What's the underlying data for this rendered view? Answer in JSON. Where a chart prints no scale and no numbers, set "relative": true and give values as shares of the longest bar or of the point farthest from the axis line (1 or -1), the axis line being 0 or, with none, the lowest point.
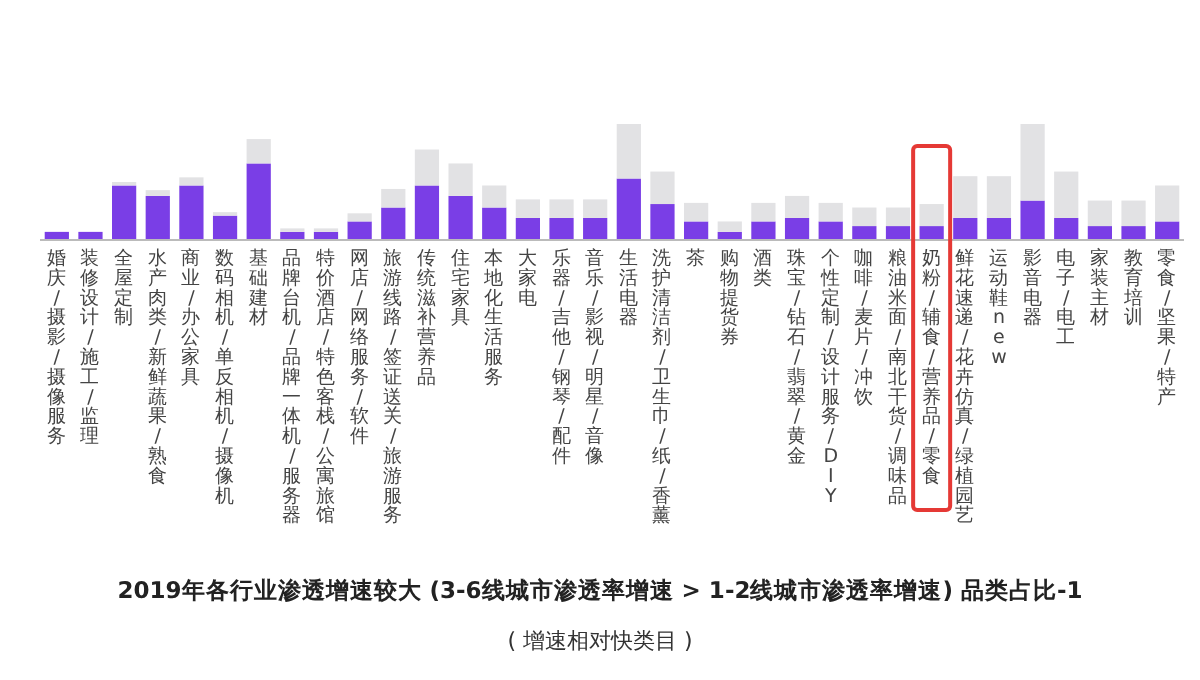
{
  "chart_data": {
    "type": "bar",
    "stacked": true,
    "relative": true,
    "title": "2019年各行业渗透增速较大 (3-6线城市渗透率增速 > 1-2线城市渗透率增速) 品类占比-1",
    "subtitle": "( 增速相对快类目 )",
    "categories": [
      "婚庆/摄影/摄像服务",
      "装修设计/施工/监理",
      "全屋定制",
      "水产肉类/新鲜蔬果/熟食",
      "商业/办公家具",
      "数码相机/单反相机/摄像机",
      "基础建材",
      "品牌台机/品牌一体机/服务器",
      "特价酒店/特色客栈/公寓旅馆",
      "网店/网络服务/软件",
      "旅游线路/签证送关/旅游服务",
      "传统滋补营养品",
      "住宅家具",
      "本地化生活服务",
      "大家电",
      "乐器/吉他/钢琴/配件",
      "音乐/影视/明星/音像",
      "生活电器",
      "洗护清洁剂/卫生巾/纸/香薰",
      "茶",
      "购物提货券",
      "酒类",
      "珠宝/钻石/翡翠/黄金",
      "个性定制/设计服务/DIY",
      "咖啡/麦片/冲饮",
      "粮油米面/南北干货/调味品",
      "奶粉/辅食/营养品/零食",
      "鲜花速递/花卉仿真/绿植园艺",
      "运动鞋new",
      "影音电器",
      "电子/电工",
      "家装主材",
      "教育培训",
      "零食/坚果/特产"
    ],
    "series": [
      {
        "color": "#7a3ee6",
        "values": [
          0.07,
          0.07,
          0.47,
          0.38,
          0.47,
          0.21,
          0.66,
          0.07,
          0.07,
          0.16,
          0.28,
          0.47,
          0.38,
          0.28,
          0.19,
          0.19,
          0.19,
          0.53,
          0.31,
          0.16,
          0.07,
          0.16,
          0.19,
          0.16,
          0.12,
          0.12,
          0.12,
          0.19,
          0.19,
          0.34,
          0.19,
          0.12,
          0.12,
          0.16
        ]
      },
      {
        "color": "#e2e2e4",
        "values": [
          0,
          0,
          0.03,
          0.05,
          0.07,
          0.03,
          0.21,
          0.03,
          0.03,
          0.07,
          0.16,
          0.31,
          0.28,
          0.19,
          0.16,
          0.16,
          0.16,
          0.47,
          0.28,
          0.16,
          0.09,
          0.16,
          0.19,
          0.16,
          0.16,
          0.16,
          0.19,
          0.36,
          0.36,
          0.66,
          0.4,
          0.22,
          0.22,
          0.31
        ]
      }
    ]
  }
}
